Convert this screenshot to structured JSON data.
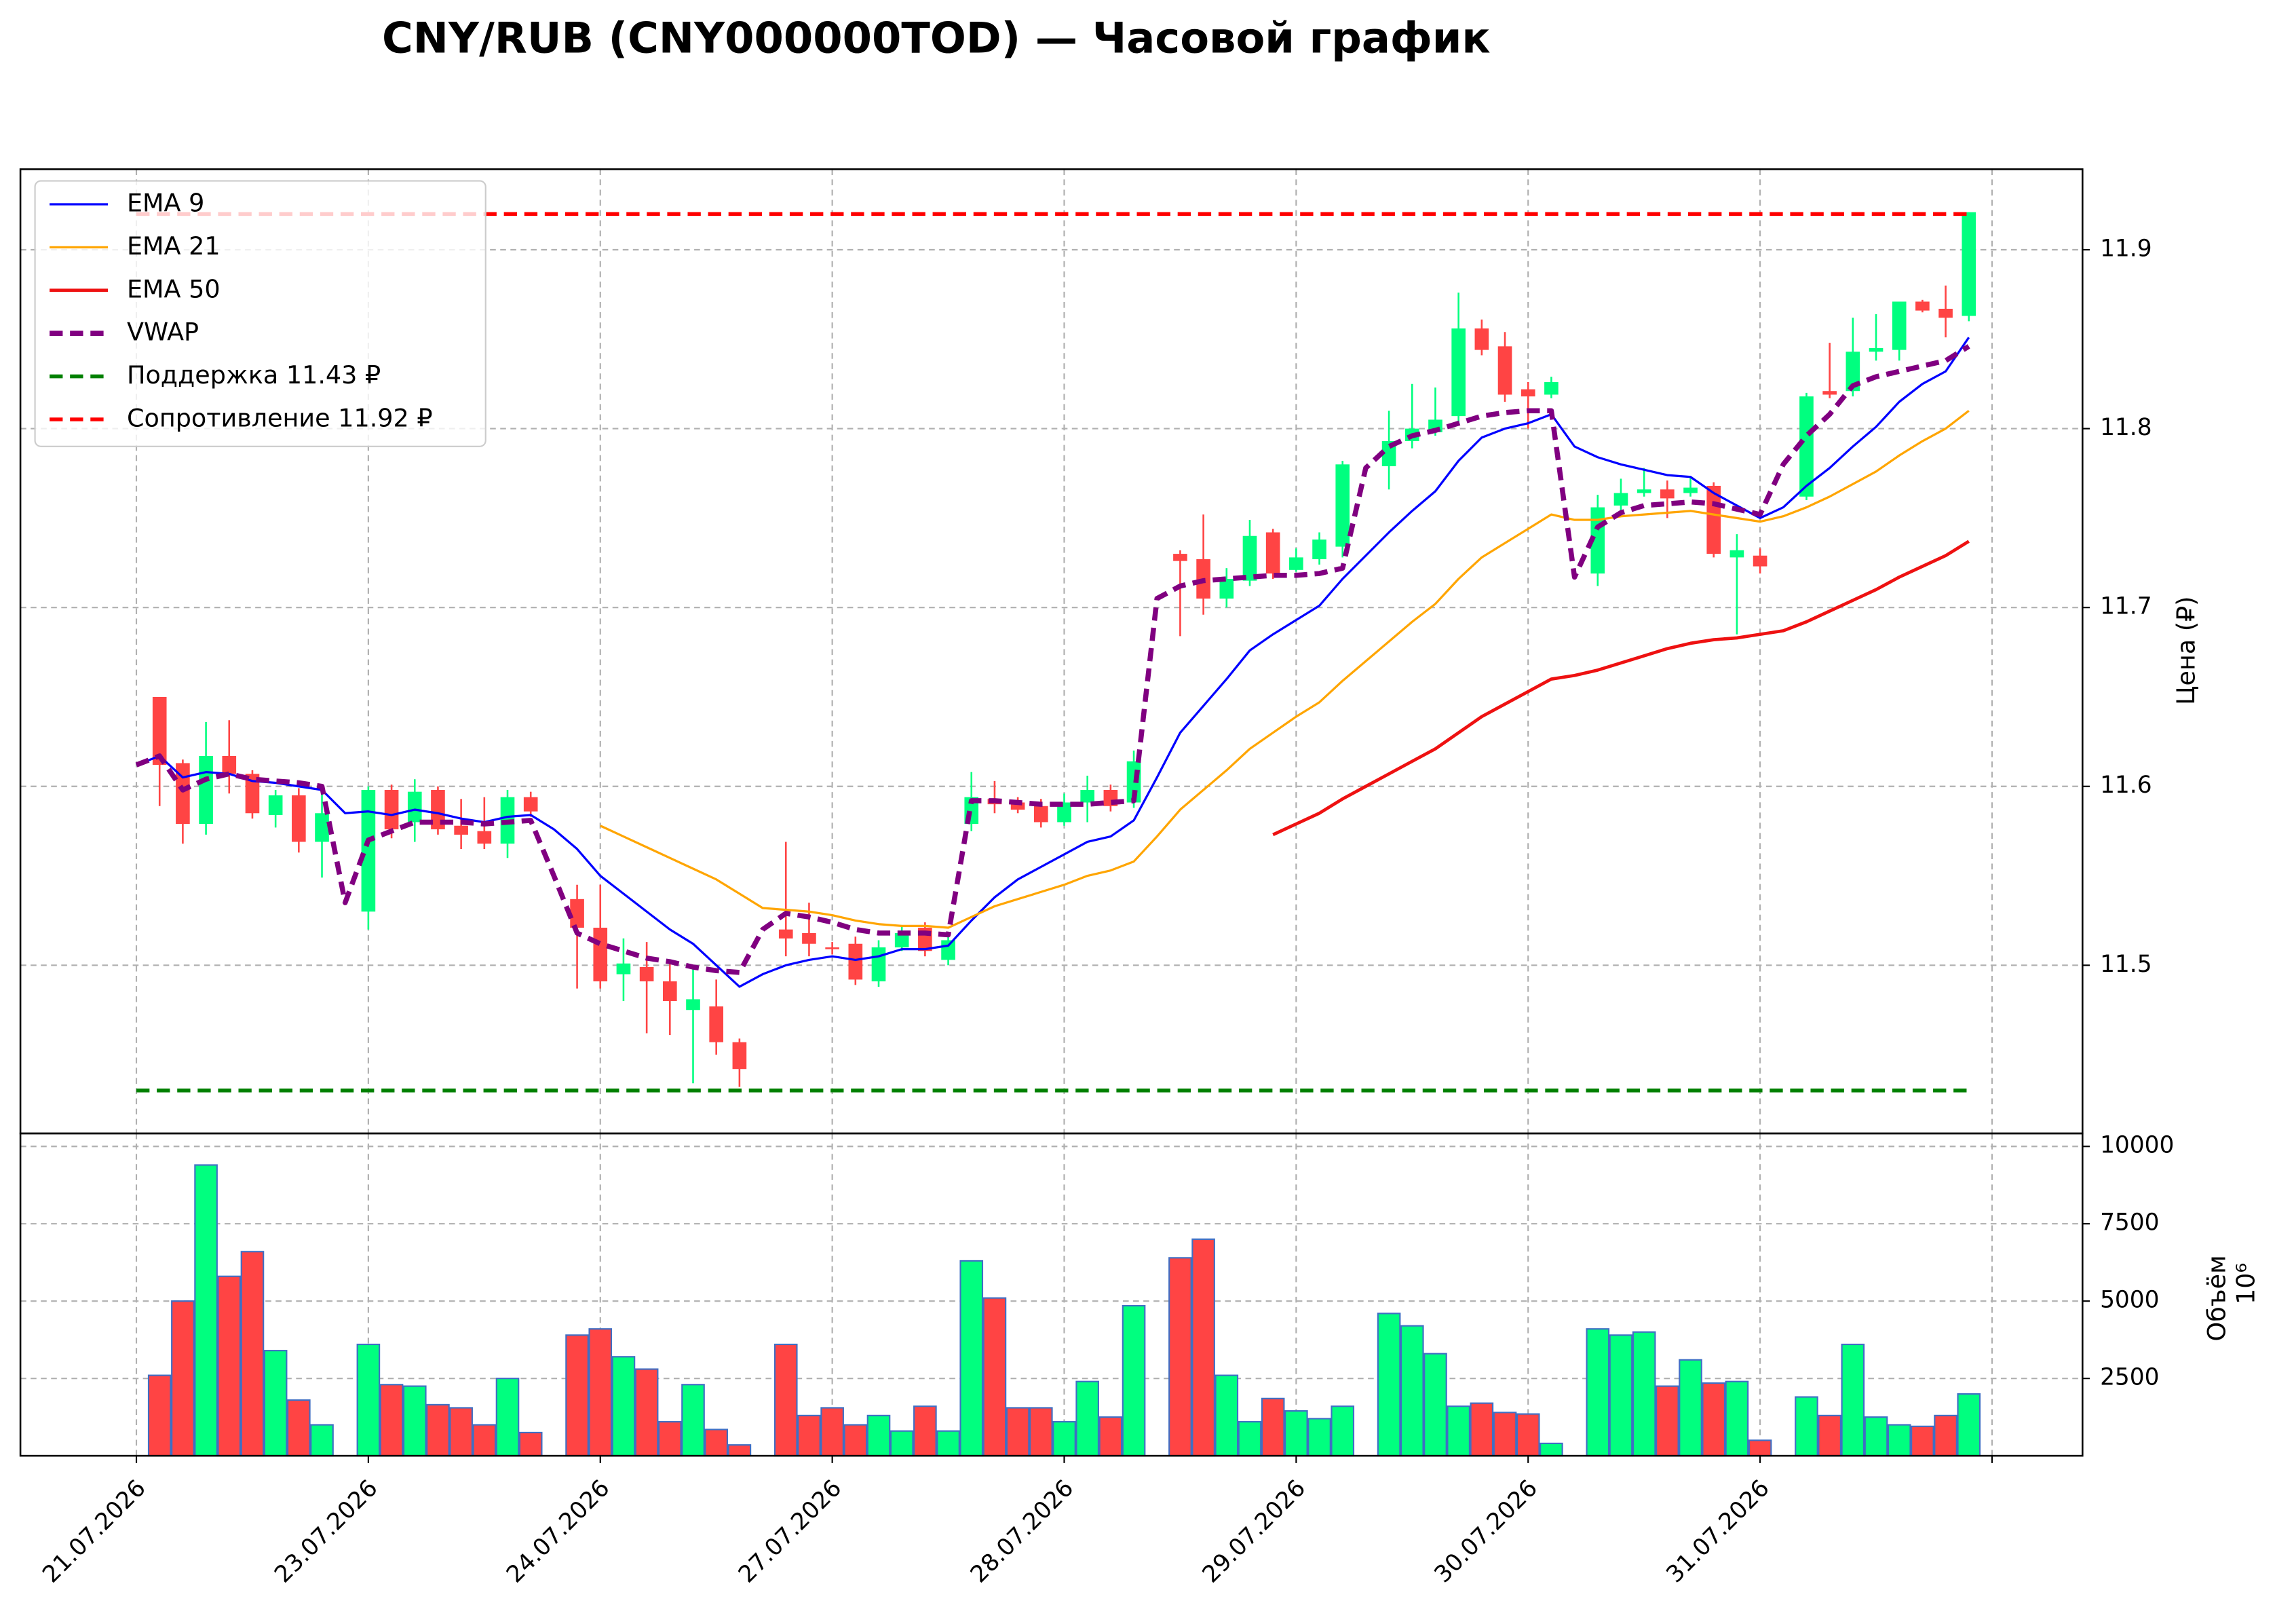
{
  "chart_data": [
    {
      "type": "candlestick",
      "title": "CNY/RUB (CNY000000TOD) — Часовой график",
      "ylabel": "Цена (₽)",
      "x": [
        0,
        1,
        2,
        3,
        4,
        5,
        6,
        7,
        8,
        9,
        10,
        11,
        12,
        13,
        14,
        15,
        16,
        17,
        18,
        19,
        20,
        21,
        22,
        23,
        24,
        25,
        26,
        27,
        28,
        29,
        30,
        31,
        32,
        33,
        34,
        35,
        36,
        37,
        38,
        39,
        40,
        41,
        42,
        43,
        44,
        45,
        46,
        47,
        48,
        49,
        50,
        51,
        52,
        53,
        54,
        55,
        56,
        57,
        58,
        59,
        60,
        61,
        62,
        63,
        64,
        65,
        66,
        67,
        68,
        69,
        70,
        71,
        72,
        73,
        74,
        75,
        76,
        77,
        78,
        79
      ],
      "open": [
        null,
        11.65,
        11.613,
        11.579,
        11.617,
        11.607,
        11.584,
        11.595,
        11.569,
        null,
        11.53,
        11.598,
        11.58,
        11.598,
        11.578,
        11.575,
        11.568,
        11.594,
        null,
        11.537,
        11.521,
        11.495,
        11.499,
        11.491,
        11.475,
        11.477,
        11.457,
        null,
        11.52,
        11.518,
        11.51,
        11.512,
        11.491,
        11.51,
        11.521,
        11.503,
        11.579,
        11.593,
        11.591,
        11.589,
        11.58,
        11.591,
        11.598,
        11.591,
        null,
        11.73,
        11.727,
        11.705,
        11.715,
        11.742,
        11.721,
        11.727,
        11.734,
        null,
        11.779,
        11.793,
        11.798,
        11.807,
        11.856,
        11.846,
        11.822,
        11.819,
        null,
        11.719,
        11.757,
        11.764,
        11.766,
        11.764,
        11.768,
        11.728,
        11.729,
        null,
        11.762,
        11.821,
        11.821,
        11.843,
        11.844,
        11.871,
        11.867,
        11.863
      ],
      "high": [
        null,
        11.65,
        11.615,
        11.636,
        11.637,
        11.609,
        11.598,
        11.599,
        11.598,
        null,
        11.6,
        11.601,
        11.604,
        11.6,
        11.593,
        11.594,
        11.598,
        11.597,
        null,
        11.545,
        11.545,
        11.515,
        11.513,
        11.502,
        11.5,
        11.492,
        11.459,
        null,
        11.569,
        11.535,
        11.513,
        11.516,
        11.514,
        11.522,
        11.524,
        11.517,
        11.608,
        11.603,
        11.594,
        11.593,
        11.596,
        11.606,
        11.601,
        11.62,
        null,
        11.732,
        11.752,
        11.722,
        11.749,
        11.744,
        11.733,
        11.742,
        11.782,
        null,
        11.81,
        11.825,
        11.823,
        11.876,
        11.861,
        11.854,
        11.826,
        11.829,
        null,
        11.763,
        11.772,
        11.778,
        11.771,
        11.773,
        11.77,
        11.741,
        11.733,
        null,
        11.82,
        11.848,
        11.862,
        11.864,
        11.871,
        11.872,
        11.88,
        11.921
      ],
      "low": [
        null,
        11.589,
        11.568,
        11.573,
        11.596,
        11.582,
        11.577,
        11.563,
        11.549,
        null,
        11.52,
        11.571,
        11.569,
        11.573,
        11.565,
        11.565,
        11.56,
        11.583,
        null,
        11.487,
        11.487,
        11.48,
        11.462,
        11.461,
        11.434,
        11.45,
        11.432,
        null,
        11.505,
        11.505,
        11.506,
        11.489,
        11.488,
        11.508,
        11.505,
        11.5,
        11.575,
        11.585,
        11.585,
        11.577,
        11.578,
        11.58,
        11.586,
        11.588,
        null,
        11.684,
        11.696,
        11.7,
        11.712,
        11.716,
        11.72,
        11.724,
        11.728,
        null,
        11.766,
        11.789,
        11.796,
        11.803,
        11.841,
        11.815,
        11.8,
        11.817,
        null,
        11.712,
        11.753,
        11.762,
        11.75,
        11.762,
        11.728,
        11.685,
        11.719,
        null,
        11.76,
        11.817,
        11.818,
        11.838,
        11.838,
        11.865,
        11.851,
        11.86
      ],
      "close": [
        null,
        11.612,
        11.579,
        11.617,
        11.607,
        11.585,
        11.595,
        11.569,
        11.585,
        null,
        11.598,
        11.576,
        11.597,
        11.576,
        11.573,
        11.568,
        11.594,
        11.586,
        null,
        11.521,
        11.491,
        11.501,
        11.491,
        11.48,
        11.481,
        11.457,
        11.442,
        null,
        11.515,
        11.512,
        11.509,
        11.492,
        11.51,
        11.518,
        11.508,
        11.514,
        11.594,
        11.59,
        11.587,
        11.58,
        11.591,
        11.598,
        11.589,
        11.614,
        null,
        11.726,
        11.705,
        11.716,
        11.74,
        11.719,
        11.728,
        11.738,
        11.78,
        null,
        11.793,
        11.8,
        11.805,
        11.856,
        11.844,
        11.819,
        11.818,
        11.826,
        null,
        11.756,
        11.764,
        11.766,
        11.761,
        11.767,
        11.73,
        11.732,
        11.723,
        null,
        11.818,
        11.819,
        11.843,
        11.845,
        11.871,
        11.866,
        11.862,
        11.921
      ],
      "up_color": "#00ff7f",
      "down_color": "#ff4444",
      "series": [
        {
          "name": "EMA 9",
          "color": "#0000ff",
          "width": 1.5,
          "dashed": false,
          "values": [
            11.612,
            11.617,
            11.605,
            11.608,
            11.607,
            11.603,
            11.602,
            11.6,
            11.598,
            11.585,
            11.586,
            11.584,
            11.587,
            11.585,
            11.582,
            11.58,
            11.583,
            11.584,
            11.576,
            11.565,
            11.55,
            11.54,
            11.53,
            11.52,
            11.512,
            11.5,
            11.488,
            11.495,
            11.5,
            11.503,
            11.505,
            11.503,
            11.505,
            11.509,
            11.509,
            11.511,
            11.525,
            11.538,
            11.548,
            11.555,
            11.562,
            11.569,
            11.572,
            11.581,
            11.605,
            11.63,
            11.645,
            11.66,
            11.676,
            11.685,
            11.693,
            11.701,
            11.716,
            11.729,
            11.742,
            11.754,
            11.765,
            11.782,
            11.795,
            11.8,
            11.803,
            11.808,
            11.79,
            11.784,
            11.78,
            11.777,
            11.774,
            11.773,
            11.764,
            11.757,
            11.75,
            11.756,
            11.768,
            11.778,
            11.79,
            11.801,
            11.815,
            11.825,
            11.832,
            11.851
          ]
        },
        {
          "name": "EMA 21",
          "color": "#ffa500",
          "width": 1.5,
          "dashed": false,
          "values": [
            null,
            null,
            null,
            null,
            null,
            null,
            null,
            null,
            null,
            null,
            null,
            null,
            null,
            null,
            null,
            null,
            null,
            null,
            null,
            null,
            11.578,
            11.572,
            11.566,
            11.56,
            11.554,
            11.548,
            11.54,
            11.532,
            11.531,
            11.53,
            11.528,
            11.525,
            11.523,
            11.522,
            11.522,
            11.521,
            11.527,
            11.533,
            11.537,
            11.541,
            11.545,
            11.55,
            11.553,
            11.558,
            11.572,
            11.587,
            11.598,
            11.609,
            11.621,
            11.63,
            11.639,
            11.647,
            11.659,
            11.67,
            11.681,
            11.692,
            11.702,
            11.716,
            11.728,
            11.736,
            11.744,
            11.752,
            11.749,
            11.749,
            11.751,
            11.752,
            11.753,
            11.754,
            11.752,
            11.75,
            11.748,
            11.751,
            11.756,
            11.762,
            11.769,
            11.776,
            11.785,
            11.793,
            11.8,
            11.81
          ]
        },
        {
          "name": "EMA 50",
          "color": "#ee1111",
          "width": 2.2,
          "dashed": false,
          "values": [
            null,
            null,
            null,
            null,
            null,
            null,
            null,
            null,
            null,
            null,
            null,
            null,
            null,
            null,
            null,
            null,
            null,
            null,
            null,
            null,
            null,
            null,
            null,
            null,
            null,
            null,
            null,
            null,
            null,
            null,
            null,
            null,
            null,
            null,
            null,
            null,
            null,
            null,
            null,
            null,
            null,
            null,
            null,
            null,
            null,
            null,
            null,
            null,
            null,
            11.573,
            11.579,
            11.585,
            11.593,
            11.6,
            11.607,
            11.614,
            11.621,
            11.63,
            11.639,
            11.646,
            11.653,
            11.66,
            11.662,
            11.665,
            11.669,
            11.673,
            11.677,
            11.68,
            11.682,
            11.683,
            11.685,
            11.687,
            11.692,
            11.698,
            11.704,
            11.71,
            11.717,
            11.723,
            11.729,
            11.737
          ]
        },
        {
          "name": "VWAP",
          "color": "#800080",
          "width": 3.5,
          "dashed": true,
          "values": [
            11.612,
            11.617,
            11.598,
            11.604,
            11.607,
            11.604,
            11.603,
            11.602,
            11.6,
            11.535,
            11.57,
            11.575,
            11.58,
            11.58,
            11.58,
            11.579,
            11.58,
            11.581,
            11.55,
            11.518,
            11.512,
            11.508,
            11.504,
            11.502,
            11.499,
            11.497,
            11.496,
            11.52,
            11.529,
            11.527,
            11.524,
            11.52,
            11.518,
            11.518,
            11.518,
            11.517,
            11.592,
            11.592,
            11.591,
            11.59,
            11.59,
            11.59,
            11.591,
            11.592,
            11.705,
            11.712,
            11.715,
            11.716,
            11.717,
            11.718,
            11.718,
            11.719,
            11.722,
            11.778,
            11.79,
            11.796,
            11.799,
            11.803,
            11.807,
            11.809,
            11.81,
            11.81,
            11.717,
            11.745,
            11.753,
            11.757,
            11.758,
            11.759,
            11.758,
            11.755,
            11.752,
            11.78,
            11.796,
            11.808,
            11.824,
            11.829,
            11.832,
            11.835,
            11.838,
            11.846
          ]
        }
      ],
      "hlines": [
        {
          "name": "Поддержка 11.43 ₽",
          "value": 11.43,
          "color": "#008000"
        },
        {
          "name": "Сопротивление 11.92 ₽",
          "value": 11.92,
          "color": "#ff0000"
        }
      ],
      "xlim": [
        -5,
        83.9
      ],
      "ylim": [
        11.406,
        11.945
      ],
      "yticks": [
        11.5,
        11.6,
        11.7,
        11.8,
        11.9
      ],
      "grid": true,
      "legend": "upper left"
    },
    {
      "type": "bar",
      "ylabel": "Объём",
      "offset_label": "10⁶",
      "edge_color": "#3f6fc4",
      "x": [
        0,
        1,
        2,
        3,
        4,
        5,
        6,
        7,
        8,
        9,
        10,
        11,
        12,
        13,
        14,
        15,
        16,
        17,
        18,
        19,
        20,
        21,
        22,
        23,
        24,
        25,
        26,
        27,
        28,
        29,
        30,
        31,
        32,
        33,
        34,
        35,
        36,
        37,
        38,
        39,
        40,
        41,
        42,
        43,
        44,
        45,
        46,
        47,
        48,
        49,
        50,
        51,
        52,
        53,
        54,
        55,
        56,
        57,
        58,
        59,
        60,
        61,
        62,
        63,
        64,
        65,
        66,
        67,
        68,
        69,
        70,
        71,
        72,
        73,
        74,
        75,
        76,
        77,
        78,
        79
      ],
      "values": [
        null,
        2600,
        5000,
        9400,
        5800,
        6600,
        3400,
        1800,
        1000,
        null,
        3600,
        2300,
        2250,
        1650,
        1550,
        1000,
        2500,
        750,
        null,
        3900,
        4100,
        3200,
        2800,
        1100,
        2300,
        850,
        350,
        null,
        3600,
        1300,
        1550,
        1000,
        1300,
        800,
        1600,
        800,
        6300,
        5100,
        1550,
        1550,
        1100,
        2400,
        1250,
        4850,
        null,
        6400,
        7000,
        2600,
        1100,
        1850,
        1450,
        1200,
        1600,
        null,
        4600,
        4200,
        3300,
        1600,
        1700,
        1400,
        1350,
        400,
        null,
        4100,
        3900,
        4000,
        2250,
        3100,
        2350,
        2400,
        500,
        null,
        1900,
        1300,
        3600,
        1250,
        1000,
        950,
        1300,
        2000
      ],
      "xlim": [
        -5,
        83.9
      ],
      "ylim": [
        0,
        10420
      ],
      "yticks": [
        2500,
        5000,
        7500,
        10000
      ],
      "xticks": [
        {
          "value": 0,
          "label": "21.07.2026"
        },
        {
          "value": 10,
          "label": "23.07.2026"
        },
        {
          "value": 20,
          "label": "24.07.2026"
        },
        {
          "value": 30,
          "label": "27.07.2026"
        },
        {
          "value": 40,
          "label": "28.07.2026"
        },
        {
          "value": 50,
          "label": "29.07.2026"
        },
        {
          "value": 60,
          "label": "30.07.2026"
        },
        {
          "value": 70,
          "label": "31.07.2026"
        },
        {
          "value": 80,
          "label": null
        }
      ],
      "grid": true
    }
  ]
}
